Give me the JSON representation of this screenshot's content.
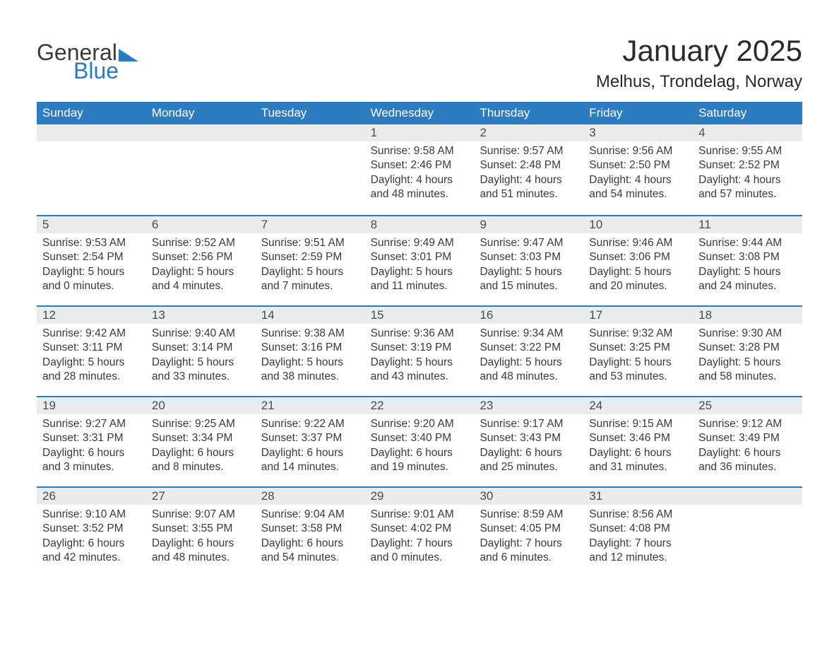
{
  "logo": {
    "text1": "General",
    "text2": "Blue"
  },
  "title": "January 2025",
  "location": "Melhus, Trondelag, Norway",
  "colors": {
    "header_bg": "#2d7cc0",
    "header_text": "#ffffff",
    "daynum_bg": "#ececec",
    "daynum_text": "#4a4a4a",
    "body_text": "#3a3a3a",
    "rule": "#2d7cc0",
    "logo_blue": "#2b7bbf",
    "page_bg": "#ffffff"
  },
  "fonts": {
    "title_size_pt": 32,
    "location_size_pt": 18,
    "dayheader_size_pt": 13,
    "daynum_size_pt": 13,
    "body_size_pt": 12
  },
  "day_headers": [
    "Sunday",
    "Monday",
    "Tuesday",
    "Wednesday",
    "Thursday",
    "Friday",
    "Saturday"
  ],
  "weeks": [
    [
      {
        "n": "",
        "sunrise": "",
        "sunset": "",
        "daylight": ""
      },
      {
        "n": "",
        "sunrise": "",
        "sunset": "",
        "daylight": ""
      },
      {
        "n": "",
        "sunrise": "",
        "sunset": "",
        "daylight": ""
      },
      {
        "n": "1",
        "sunrise": "Sunrise: 9:58 AM",
        "sunset": "Sunset: 2:46 PM",
        "daylight": "Daylight: 4 hours and 48 minutes."
      },
      {
        "n": "2",
        "sunrise": "Sunrise: 9:57 AM",
        "sunset": "Sunset: 2:48 PM",
        "daylight": "Daylight: 4 hours and 51 minutes."
      },
      {
        "n": "3",
        "sunrise": "Sunrise: 9:56 AM",
        "sunset": "Sunset: 2:50 PM",
        "daylight": "Daylight: 4 hours and 54 minutes."
      },
      {
        "n": "4",
        "sunrise": "Sunrise: 9:55 AM",
        "sunset": "Sunset: 2:52 PM",
        "daylight": "Daylight: 4 hours and 57 minutes."
      }
    ],
    [
      {
        "n": "5",
        "sunrise": "Sunrise: 9:53 AM",
        "sunset": "Sunset: 2:54 PM",
        "daylight": "Daylight: 5 hours and 0 minutes."
      },
      {
        "n": "6",
        "sunrise": "Sunrise: 9:52 AM",
        "sunset": "Sunset: 2:56 PM",
        "daylight": "Daylight: 5 hours and 4 minutes."
      },
      {
        "n": "7",
        "sunrise": "Sunrise: 9:51 AM",
        "sunset": "Sunset: 2:59 PM",
        "daylight": "Daylight: 5 hours and 7 minutes."
      },
      {
        "n": "8",
        "sunrise": "Sunrise: 9:49 AM",
        "sunset": "Sunset: 3:01 PM",
        "daylight": "Daylight: 5 hours and 11 minutes."
      },
      {
        "n": "9",
        "sunrise": "Sunrise: 9:47 AM",
        "sunset": "Sunset: 3:03 PM",
        "daylight": "Daylight: 5 hours and 15 minutes."
      },
      {
        "n": "10",
        "sunrise": "Sunrise: 9:46 AM",
        "sunset": "Sunset: 3:06 PM",
        "daylight": "Daylight: 5 hours and 20 minutes."
      },
      {
        "n": "11",
        "sunrise": "Sunrise: 9:44 AM",
        "sunset": "Sunset: 3:08 PM",
        "daylight": "Daylight: 5 hours and 24 minutes."
      }
    ],
    [
      {
        "n": "12",
        "sunrise": "Sunrise: 9:42 AM",
        "sunset": "Sunset: 3:11 PM",
        "daylight": "Daylight: 5 hours and 28 minutes."
      },
      {
        "n": "13",
        "sunrise": "Sunrise: 9:40 AM",
        "sunset": "Sunset: 3:14 PM",
        "daylight": "Daylight: 5 hours and 33 minutes."
      },
      {
        "n": "14",
        "sunrise": "Sunrise: 9:38 AM",
        "sunset": "Sunset: 3:16 PM",
        "daylight": "Daylight: 5 hours and 38 minutes."
      },
      {
        "n": "15",
        "sunrise": "Sunrise: 9:36 AM",
        "sunset": "Sunset: 3:19 PM",
        "daylight": "Daylight: 5 hours and 43 minutes."
      },
      {
        "n": "16",
        "sunrise": "Sunrise: 9:34 AM",
        "sunset": "Sunset: 3:22 PM",
        "daylight": "Daylight: 5 hours and 48 minutes."
      },
      {
        "n": "17",
        "sunrise": "Sunrise: 9:32 AM",
        "sunset": "Sunset: 3:25 PM",
        "daylight": "Daylight: 5 hours and 53 minutes."
      },
      {
        "n": "18",
        "sunrise": "Sunrise: 9:30 AM",
        "sunset": "Sunset: 3:28 PM",
        "daylight": "Daylight: 5 hours and 58 minutes."
      }
    ],
    [
      {
        "n": "19",
        "sunrise": "Sunrise: 9:27 AM",
        "sunset": "Sunset: 3:31 PM",
        "daylight": "Daylight: 6 hours and 3 minutes."
      },
      {
        "n": "20",
        "sunrise": "Sunrise: 9:25 AM",
        "sunset": "Sunset: 3:34 PM",
        "daylight": "Daylight: 6 hours and 8 minutes."
      },
      {
        "n": "21",
        "sunrise": "Sunrise: 9:22 AM",
        "sunset": "Sunset: 3:37 PM",
        "daylight": "Daylight: 6 hours and 14 minutes."
      },
      {
        "n": "22",
        "sunrise": "Sunrise: 9:20 AM",
        "sunset": "Sunset: 3:40 PM",
        "daylight": "Daylight: 6 hours and 19 minutes."
      },
      {
        "n": "23",
        "sunrise": "Sunrise: 9:17 AM",
        "sunset": "Sunset: 3:43 PM",
        "daylight": "Daylight: 6 hours and 25 minutes."
      },
      {
        "n": "24",
        "sunrise": "Sunrise: 9:15 AM",
        "sunset": "Sunset: 3:46 PM",
        "daylight": "Daylight: 6 hours and 31 minutes."
      },
      {
        "n": "25",
        "sunrise": "Sunrise: 9:12 AM",
        "sunset": "Sunset: 3:49 PM",
        "daylight": "Daylight: 6 hours and 36 minutes."
      }
    ],
    [
      {
        "n": "26",
        "sunrise": "Sunrise: 9:10 AM",
        "sunset": "Sunset: 3:52 PM",
        "daylight": "Daylight: 6 hours and 42 minutes."
      },
      {
        "n": "27",
        "sunrise": "Sunrise: 9:07 AM",
        "sunset": "Sunset: 3:55 PM",
        "daylight": "Daylight: 6 hours and 48 minutes."
      },
      {
        "n": "28",
        "sunrise": "Sunrise: 9:04 AM",
        "sunset": "Sunset: 3:58 PM",
        "daylight": "Daylight: 6 hours and 54 minutes."
      },
      {
        "n": "29",
        "sunrise": "Sunrise: 9:01 AM",
        "sunset": "Sunset: 4:02 PM",
        "daylight": "Daylight: 7 hours and 0 minutes."
      },
      {
        "n": "30",
        "sunrise": "Sunrise: 8:59 AM",
        "sunset": "Sunset: 4:05 PM",
        "daylight": "Daylight: 7 hours and 6 minutes."
      },
      {
        "n": "31",
        "sunrise": "Sunrise: 8:56 AM",
        "sunset": "Sunset: 4:08 PM",
        "daylight": "Daylight: 7 hours and 12 minutes."
      },
      {
        "n": "",
        "sunrise": "",
        "sunset": "",
        "daylight": ""
      }
    ]
  ]
}
